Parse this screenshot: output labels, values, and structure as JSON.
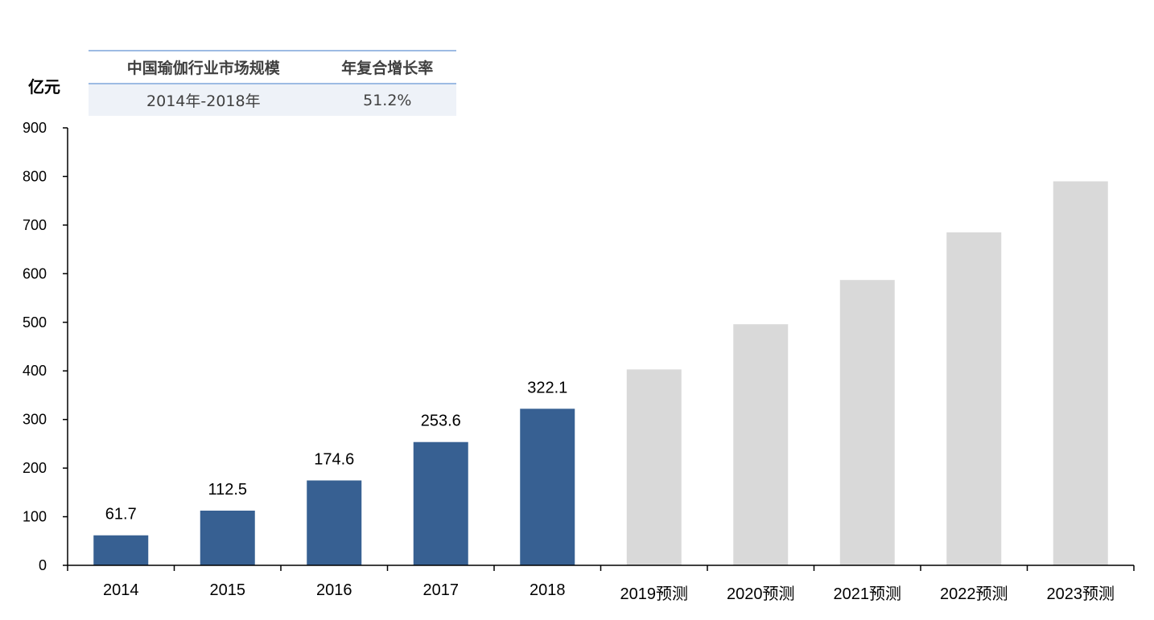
{
  "table": {
    "headers": [
      "中国瑜伽行业市场规模",
      "年复合增长率"
    ],
    "row": [
      "2014年-2018年",
      "51.2%"
    ]
  },
  "chart_data": {
    "type": "bar",
    "ylabel": "亿元",
    "ylim": [
      0,
      900
    ],
    "yticks": [
      0,
      100,
      200,
      300,
      400,
      500,
      600,
      700,
      800,
      900
    ],
    "categories": [
      "2014",
      "2015",
      "2016",
      "2017",
      "2018",
      "2019预测",
      "2020预测",
      "2021预测",
      "2022预测",
      "2023预测"
    ],
    "values": [
      61.7,
      112.5,
      174.6,
      253.6,
      322.1,
      403,
      496,
      587,
      685,
      790
    ],
    "data_labels": [
      "61.7",
      "112.5",
      "174.6",
      "253.6",
      "322.1",
      "",
      "",
      "",
      "",
      ""
    ],
    "forecast": [
      false,
      false,
      false,
      false,
      false,
      true,
      true,
      true,
      true,
      true
    ],
    "colors": {
      "actual": "#376092",
      "forecast": "#d9d9d9",
      "axis": "#000000"
    },
    "grid": false
  }
}
